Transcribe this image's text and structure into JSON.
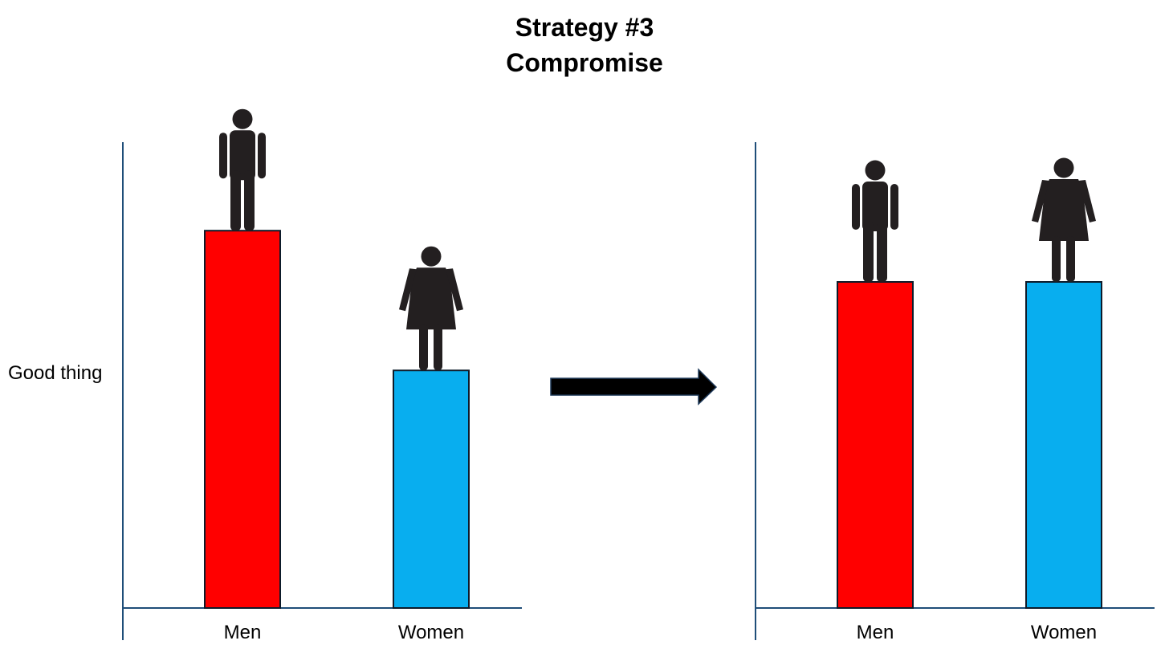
{
  "title_line1": "Strategy #3",
  "title_line2": "Compromise",
  "y_axis_label": "Good thing",
  "colors": {
    "men": "#ff0000",
    "women": "#08aeef",
    "axis": "#1f4e79",
    "outline": "#0d1b2a",
    "figure": "#231f20",
    "arrow": "#000000"
  },
  "chart_data": [
    {
      "type": "bar",
      "title": "",
      "xlabel": "",
      "ylabel": "Good thing",
      "categories": [
        "Men",
        "Women"
      ],
      "values": [
        81,
        51
      ],
      "ylim": [
        0,
        100
      ],
      "icons": [
        "man-icon",
        "woman-icon"
      ]
    },
    {
      "type": "bar",
      "title": "",
      "xlabel": "",
      "ylabel": "",
      "categories": [
        "Men",
        "Women"
      ],
      "values": [
        70,
        70
      ],
      "ylim": [
        0,
        100
      ],
      "icons": [
        "man-icon",
        "woman-icon"
      ]
    }
  ]
}
